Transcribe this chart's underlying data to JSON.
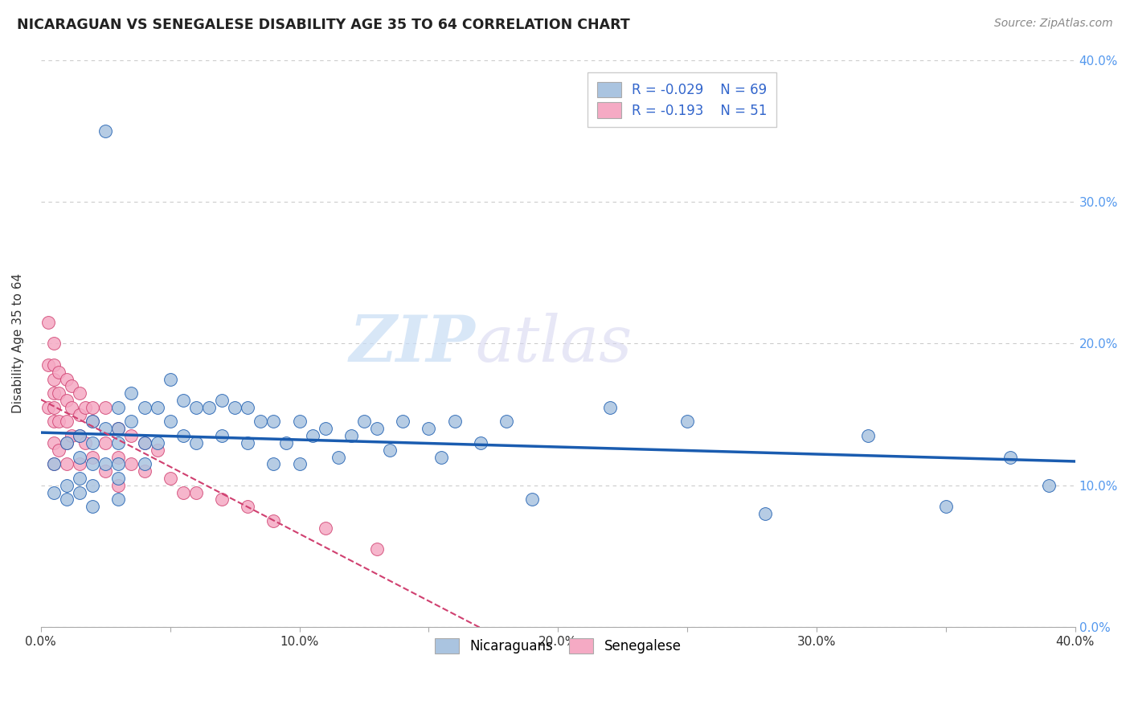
{
  "title": "NICARAGUAN VS SENEGALESE DISABILITY AGE 35 TO 64 CORRELATION CHART",
  "source_text": "Source: ZipAtlas.com",
  "ylabel": "Disability Age 35 to 64",
  "xlim": [
    0.0,
    0.4
  ],
  "ylim": [
    0.0,
    0.4
  ],
  "xtick_labels": [
    "0.0%",
    "",
    "10.0%",
    "",
    "20.0%",
    "",
    "30.0%",
    "",
    "40.0%"
  ],
  "ytick_labels": [
    "0.0%",
    "10.0%",
    "20.0%",
    "30.0%",
    "40.0%"
  ],
  "xtick_vals": [
    0.0,
    0.05,
    0.1,
    0.15,
    0.2,
    0.25,
    0.3,
    0.35,
    0.4
  ],
  "ytick_vals": [
    0.0,
    0.1,
    0.2,
    0.3,
    0.4
  ],
  "legend_r_blue": "R = -0.029",
  "legend_n_blue": "N = 69",
  "legend_r_pink": "R = -0.193",
  "legend_n_pink": "N = 51",
  "blue_color": "#aac4e0",
  "pink_color": "#f5aac4",
  "blue_line_color": "#1a5cb0",
  "pink_line_color": "#d04070",
  "background_color": "#ffffff",
  "grid_color": "#cccccc",
  "watermark_zip": "ZIP",
  "watermark_atlas": "atlas",
  "nicaraguan_x": [
    0.005,
    0.005,
    0.01,
    0.01,
    0.01,
    0.015,
    0.015,
    0.015,
    0.015,
    0.02,
    0.02,
    0.02,
    0.02,
    0.02,
    0.025,
    0.025,
    0.025,
    0.03,
    0.03,
    0.03,
    0.03,
    0.03,
    0.03,
    0.035,
    0.035,
    0.04,
    0.04,
    0.04,
    0.045,
    0.045,
    0.05,
    0.05,
    0.055,
    0.055,
    0.06,
    0.06,
    0.065,
    0.07,
    0.07,
    0.075,
    0.08,
    0.08,
    0.085,
    0.09,
    0.09,
    0.095,
    0.1,
    0.1,
    0.105,
    0.11,
    0.115,
    0.12,
    0.125,
    0.13,
    0.135,
    0.14,
    0.15,
    0.155,
    0.16,
    0.17,
    0.18,
    0.19,
    0.22,
    0.25,
    0.28,
    0.32,
    0.35,
    0.375,
    0.39
  ],
  "nicaraguan_y": [
    0.115,
    0.095,
    0.13,
    0.1,
    0.09,
    0.135,
    0.12,
    0.105,
    0.095,
    0.145,
    0.13,
    0.115,
    0.1,
    0.085,
    0.35,
    0.14,
    0.115,
    0.155,
    0.14,
    0.13,
    0.115,
    0.105,
    0.09,
    0.165,
    0.145,
    0.155,
    0.13,
    0.115,
    0.155,
    0.13,
    0.175,
    0.145,
    0.16,
    0.135,
    0.155,
    0.13,
    0.155,
    0.16,
    0.135,
    0.155,
    0.155,
    0.13,
    0.145,
    0.145,
    0.115,
    0.13,
    0.145,
    0.115,
    0.135,
    0.14,
    0.12,
    0.135,
    0.145,
    0.14,
    0.125,
    0.145,
    0.14,
    0.12,
    0.145,
    0.13,
    0.145,
    0.09,
    0.155,
    0.145,
    0.08,
    0.135,
    0.085,
    0.12,
    0.1
  ],
  "senegalese_x": [
    0.003,
    0.003,
    0.003,
    0.005,
    0.005,
    0.005,
    0.005,
    0.005,
    0.005,
    0.005,
    0.005,
    0.007,
    0.007,
    0.007,
    0.007,
    0.01,
    0.01,
    0.01,
    0.01,
    0.01,
    0.012,
    0.012,
    0.012,
    0.015,
    0.015,
    0.015,
    0.015,
    0.017,
    0.017,
    0.02,
    0.02,
    0.02,
    0.025,
    0.025,
    0.025,
    0.03,
    0.03,
    0.03,
    0.035,
    0.035,
    0.04,
    0.04,
    0.045,
    0.05,
    0.055,
    0.06,
    0.07,
    0.08,
    0.09,
    0.11,
    0.13
  ],
  "senegalese_y": [
    0.215,
    0.185,
    0.155,
    0.2,
    0.185,
    0.175,
    0.165,
    0.155,
    0.145,
    0.13,
    0.115,
    0.18,
    0.165,
    0.145,
    0.125,
    0.175,
    0.16,
    0.145,
    0.13,
    0.115,
    0.17,
    0.155,
    0.135,
    0.165,
    0.15,
    0.135,
    0.115,
    0.155,
    0.13,
    0.155,
    0.145,
    0.12,
    0.155,
    0.13,
    0.11,
    0.14,
    0.12,
    0.1,
    0.135,
    0.115,
    0.13,
    0.11,
    0.125,
    0.105,
    0.095,
    0.095,
    0.09,
    0.085,
    0.075,
    0.07,
    0.055
  ]
}
